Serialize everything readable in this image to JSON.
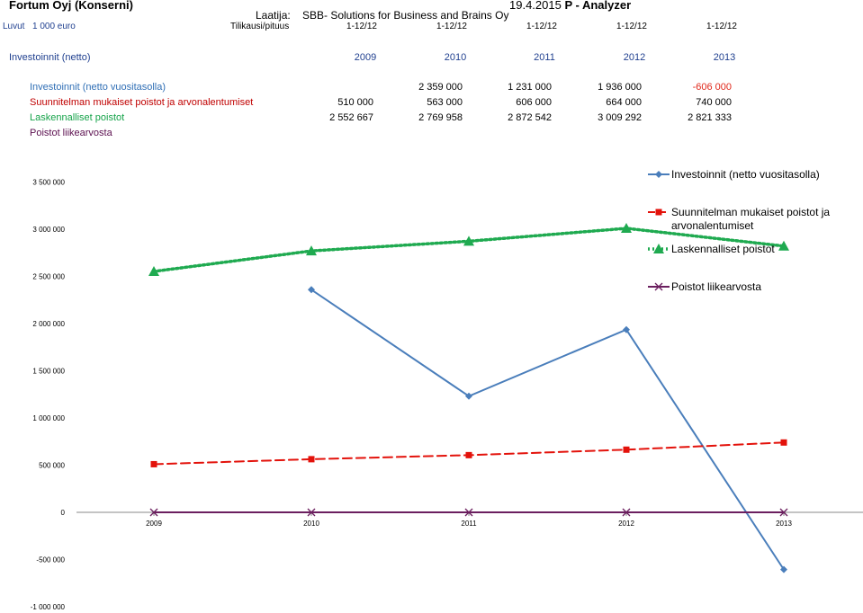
{
  "header": {
    "company": "Fortum Oyj (Konserni)",
    "date": "19.4.2015",
    "app_name": "P - Analyzer",
    "author_label": "Laatija:",
    "author": "SBB- Solutions for Business and Brains Oy",
    "units_label": "Luvut",
    "units": "1 000 euro",
    "period_label": "Tilikausi/pituus",
    "periods": [
      "1-12/12",
      "1-12/12",
      "1-12/12",
      "1-12/12",
      "1-12/12"
    ]
  },
  "table": {
    "title": "Investoinnit (netto)",
    "years": [
      "2009",
      "2010",
      "2011",
      "2012",
      "2013"
    ],
    "rows": [
      {
        "label": "Investoinnit (netto vuositasolla)",
        "color": "#2f6eb5",
        "cells": [
          "",
          "2 359 000",
          "1 231 000",
          "1 936 000",
          "-606 000"
        ]
      },
      {
        "label": "Suunnitelman mukaiset poistot ja arvonalentumiset",
        "color": "#c00000",
        "cells": [
          "510 000",
          "563 000",
          "606 000",
          "664 000",
          "740 000"
        ]
      },
      {
        "label": "Laskennalliset poistot",
        "color": "#16a34a",
        "cells": [
          "2 552 667",
          "2 769 958",
          "2 872 542",
          "3 009 292",
          "2 821 333"
        ]
      },
      {
        "label": "Poistot liikearvosta",
        "color": "#5b0f4f",
        "cells": [
          "",
          "",
          "",
          "",
          ""
        ]
      }
    ],
    "negative_color": "#e0271a"
  },
  "chart_data": {
    "type": "line",
    "x": [
      "2009",
      "2010",
      "2011",
      "2012",
      "2013"
    ],
    "ylim": [
      -1000000,
      3500000
    ],
    "yticks": [
      -1000000,
      -500000,
      0,
      500000,
      1000000,
      1500000,
      2000000,
      2500000,
      3000000,
      3500000
    ],
    "ytick_labels": [
      "-1 000 000",
      "-500 000",
      "0",
      "500 000",
      "1 000 000",
      "1 500 000",
      "2 000 000",
      "2 500 000",
      "3 000 000",
      "3 500 000"
    ],
    "grid": false,
    "legend": "right",
    "series": [
      {
        "name": "Investoinnit (netto vuositasolla)",
        "color": "#4a7ebb",
        "marker": "diamond",
        "dash": "solid",
        "values": [
          null,
          2359000,
          1231000,
          1936000,
          -606000
        ]
      },
      {
        "name": "Suunnitelman mukaiset poistot ja arvonalentumiset",
        "color": "#e3120b",
        "marker": "square",
        "dash": "dashed",
        "values": [
          510000,
          563000,
          606000,
          664000,
          740000
        ]
      },
      {
        "name": "Laskennalliset poistot",
        "color": "#1faa50",
        "marker": "triangle",
        "dash": "dotted",
        "values": [
          2552667,
          2769958,
          2872542,
          3009292,
          2821333
        ]
      },
      {
        "name": "Poistot liikearvosta",
        "color": "#6b1f5f",
        "marker": "x",
        "dash": "solid",
        "values": [
          0,
          0,
          0,
          0,
          0
        ]
      }
    ]
  }
}
